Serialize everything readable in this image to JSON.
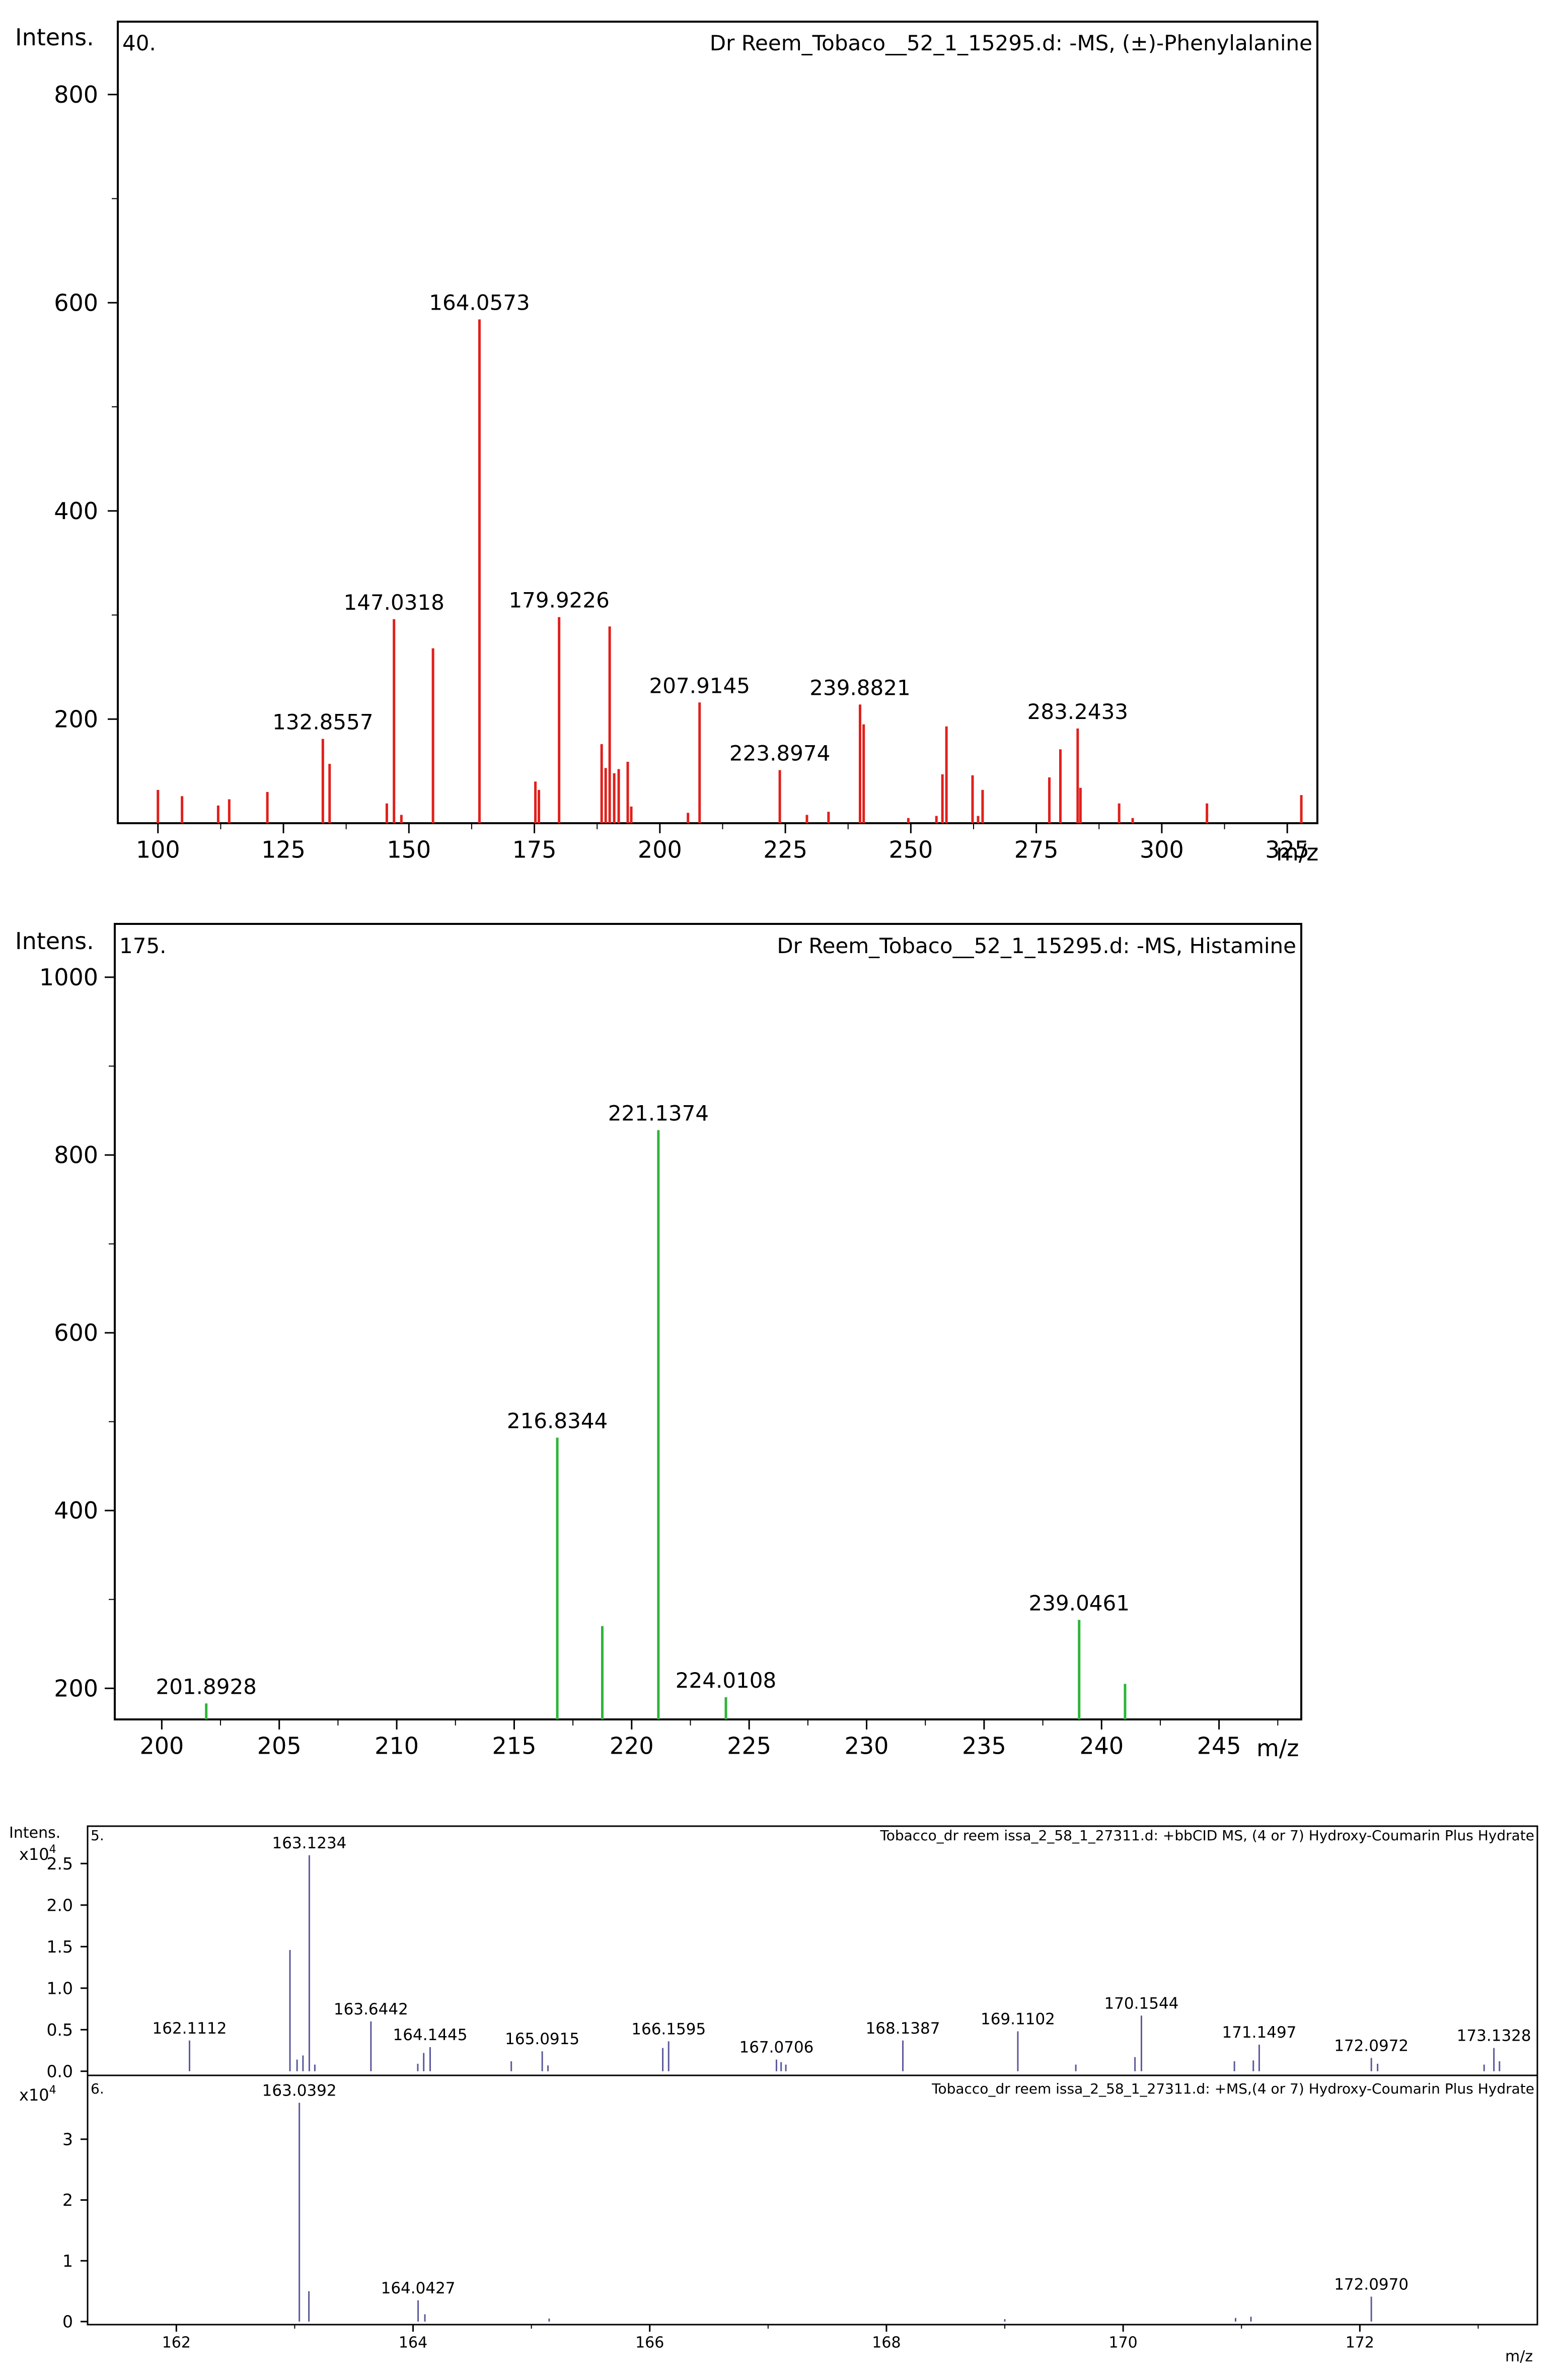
{
  "chart_data": [
    {
      "type": "bar",
      "compound_index": "40.",
      "title": "Dr Reem_Tobaco__52_1_15295.d: -MS, (±)-Phenylalanine",
      "ylabel": "Intens.",
      "xlabel": "m/z",
      "color": "#e0201c",
      "xlim": [
        92,
        331
      ],
      "ylim": [
        100,
        870
      ],
      "xticks": [
        100,
        125,
        150,
        175,
        200,
        225,
        250,
        275,
        300,
        325
      ],
      "xtick_labels": [
        "100",
        "125",
        "150",
        "175",
        "200",
        "225",
        "250",
        "275",
        "300",
        "325"
      ],
      "yticks": [
        200,
        400,
        600,
        800
      ],
      "ytick_labels": [
        "200",
        "400",
        "600",
        "800"
      ],
      "peaks": [
        {
          "x": 100.0,
          "y": 132
        },
        {
          "x": 104.8,
          "y": 126
        },
        {
          "x": 112.0,
          "y": 117
        },
        {
          "x": 114.2,
          "y": 123
        },
        {
          "x": 121.8,
          "y": 130
        },
        {
          "x": 132.8557,
          "y": 181,
          "label": "132.8557"
        },
        {
          "x": 134.2,
          "y": 157
        },
        {
          "x": 145.6,
          "y": 119
        },
        {
          "x": 147.0318,
          "y": 296,
          "label": "147.0318"
        },
        {
          "x": 148.5,
          "y": 108
        },
        {
          "x": 154.8,
          "y": 268
        },
        {
          "x": 164.0573,
          "y": 584,
          "label": "164.0573"
        },
        {
          "x": 175.2,
          "y": 140
        },
        {
          "x": 175.9,
          "y": 132
        },
        {
          "x": 179.9226,
          "y": 298,
          "label": "179.9226"
        },
        {
          "x": 188.4,
          "y": 176
        },
        {
          "x": 189.2,
          "y": 153
        },
        {
          "x": 190.0,
          "y": 289
        },
        {
          "x": 190.9,
          "y": 148
        },
        {
          "x": 191.8,
          "y": 152
        },
        {
          "x": 193.6,
          "y": 159
        },
        {
          "x": 194.3,
          "y": 116
        },
        {
          "x": 205.6,
          "y": 110
        },
        {
          "x": 207.9145,
          "y": 216,
          "label": "207.9145"
        },
        {
          "x": 223.8974,
          "y": 151,
          "label": "223.8974"
        },
        {
          "x": 229.3,
          "y": 108
        },
        {
          "x": 233.6,
          "y": 111
        },
        {
          "x": 239.8821,
          "y": 214,
          "label": "239.8821"
        },
        {
          "x": 240.6,
          "y": 195
        },
        {
          "x": 249.5,
          "y": 105
        },
        {
          "x": 255.1,
          "y": 107
        },
        {
          "x": 256.3,
          "y": 147
        },
        {
          "x": 257.1,
          "y": 193
        },
        {
          "x": 262.3,
          "y": 146
        },
        {
          "x": 263.4,
          "y": 107
        },
        {
          "x": 264.3,
          "y": 132
        },
        {
          "x": 277.6,
          "y": 144
        },
        {
          "x": 279.8,
          "y": 171
        },
        {
          "x": 283.2433,
          "y": 191,
          "label": "283.2433"
        },
        {
          "x": 283.8,
          "y": 134
        },
        {
          "x": 291.5,
          "y": 119
        },
        {
          "x": 294.2,
          "y": 105
        },
        {
          "x": 309.0,
          "y": 119
        },
        {
          "x": 327.8,
          "y": 127
        }
      ]
    },
    {
      "type": "bar",
      "compound_index": "175.",
      "title": "Dr Reem_Tobaco__52_1_15295.d: -MS, Histamine",
      "ylabel": "Intens.",
      "xlabel": "m/z",
      "color": "#2db53a",
      "xlim": [
        198,
        248.5
      ],
      "ylim": [
        165,
        1060
      ],
      "xticks": [
        200,
        205,
        210,
        215,
        220,
        225,
        230,
        235,
        240,
        245
      ],
      "xtick_labels": [
        "200",
        "205",
        "210",
        "215",
        "220",
        "225",
        "230",
        "235",
        "240",
        "245"
      ],
      "yticks": [
        200,
        400,
        600,
        800,
        1000
      ],
      "ytick_labels": [
        "200",
        "400",
        "600",
        "800",
        "1000"
      ],
      "peaks": [
        {
          "x": 201.8928,
          "y": 183,
          "label": "201.8928"
        },
        {
          "x": 216.8344,
          "y": 482,
          "label": "216.8344"
        },
        {
          "x": 218.75,
          "y": 270
        },
        {
          "x": 221.1374,
          "y": 828,
          "label": "221.1374"
        },
        {
          "x": 224.0108,
          "y": 190,
          "label": "224.0108"
        },
        {
          "x": 239.0461,
          "y": 277,
          "label": "239.0461"
        },
        {
          "x": 241.0,
          "y": 205
        }
      ]
    },
    {
      "type": "bar",
      "compound_index": "5.",
      "title": "Tobacco_dr reem issa_2_58_1_27311.d: +bbCID MS, (4 or 7) Hydroxy-Coumarin Plus Hydrate",
      "ylabel": "Intens.",
      "y_multiplier": "x10",
      "y_multiplier_exp": "4",
      "color": "#5a5a9c",
      "xlim": [
        161.25,
        173.5
      ],
      "ylim": [
        -0.05,
        2.95
      ],
      "yticks": [
        0.0,
        0.5,
        1.0,
        1.5,
        2.0,
        2.5
      ],
      "ytick_labels": [
        "0.0",
        "0.5",
        "1.0",
        "1.5",
        "2.0",
        "2.5"
      ],
      "peaks": [
        {
          "x": 162.1112,
          "y": 0.37,
          "label": "162.1112"
        },
        {
          "x": 162.96,
          "y": 1.46
        },
        {
          "x": 163.02,
          "y": 0.14
        },
        {
          "x": 163.07,
          "y": 0.19
        },
        {
          "x": 163.1234,
          "y": 2.6,
          "label": "163.1234"
        },
        {
          "x": 163.17,
          "y": 0.08
        },
        {
          "x": 163.6442,
          "y": 0.6,
          "label": "163.6442"
        },
        {
          "x": 164.04,
          "y": 0.09
        },
        {
          "x": 164.09,
          "y": 0.22
        },
        {
          "x": 164.1445,
          "y": 0.29,
          "label": "164.1445"
        },
        {
          "x": 164.83,
          "y": 0.12
        },
        {
          "x": 165.0915,
          "y": 0.24,
          "label": "165.0915"
        },
        {
          "x": 165.14,
          "y": 0.07
        },
        {
          "x": 166.11,
          "y": 0.28
        },
        {
          "x": 166.1595,
          "y": 0.36,
          "label": "166.1595"
        },
        {
          "x": 167.0706,
          "y": 0.14,
          "label": "167.0706"
        },
        {
          "x": 167.11,
          "y": 0.11
        },
        {
          "x": 167.15,
          "y": 0.08
        },
        {
          "x": 168.1387,
          "y": 0.37,
          "label": "168.1387"
        },
        {
          "x": 169.1102,
          "y": 0.48,
          "label": "169.1102"
        },
        {
          "x": 169.6,
          "y": 0.08
        },
        {
          "x": 170.1,
          "y": 0.17
        },
        {
          "x": 170.1544,
          "y": 0.67,
          "label": "170.1544"
        },
        {
          "x": 170.94,
          "y": 0.12
        },
        {
          "x": 171.1497,
          "y": 0.32,
          "label": "171.1497"
        },
        {
          "x": 171.1,
          "y": 0.13
        },
        {
          "x": 172.0972,
          "y": 0.16,
          "label": "172.0972"
        },
        {
          "x": 172.15,
          "y": 0.09
        },
        {
          "x": 173.05,
          "y": 0.08
        },
        {
          "x": 173.1328,
          "y": 0.28,
          "label": "173.1328"
        },
        {
          "x": 173.18,
          "y": 0.12
        }
      ]
    },
    {
      "type": "bar",
      "compound_index": "6.",
      "title": "Tobacco_dr reem issa_2_58_1_27311.d: +MS,(4 or 7) Hydroxy-Coumarin Plus Hydrate",
      "y_multiplier": "x10",
      "y_multiplier_exp": "4",
      "xlabel": "m/z",
      "color": "#5a5a9c",
      "xlim": [
        161.25,
        173.5
      ],
      "ylim": [
        -0.05,
        4.05
      ],
      "xticks": [
        162,
        164,
        166,
        168,
        170,
        172
      ],
      "xtick_labels": [
        "162",
        "164",
        "166",
        "168",
        "170",
        "172"
      ],
      "yticks": [
        0,
        1,
        2,
        3
      ],
      "ytick_labels": [
        "0",
        "1",
        "2",
        "3"
      ],
      "peaks": [
        {
          "x": 163.0392,
          "y": 3.6,
          "label": "163.0392"
        },
        {
          "x": 163.12,
          "y": 0.5
        },
        {
          "x": 164.0427,
          "y": 0.35,
          "label": "164.0427"
        },
        {
          "x": 164.1,
          "y": 0.12
        },
        {
          "x": 165.15,
          "y": 0.05
        },
        {
          "x": 169.0,
          "y": 0.04
        },
        {
          "x": 170.95,
          "y": 0.06
        },
        {
          "x": 171.08,
          "y": 0.08
        },
        {
          "x": 172.097,
          "y": 0.41,
          "label": "172.0970"
        }
      ]
    }
  ]
}
